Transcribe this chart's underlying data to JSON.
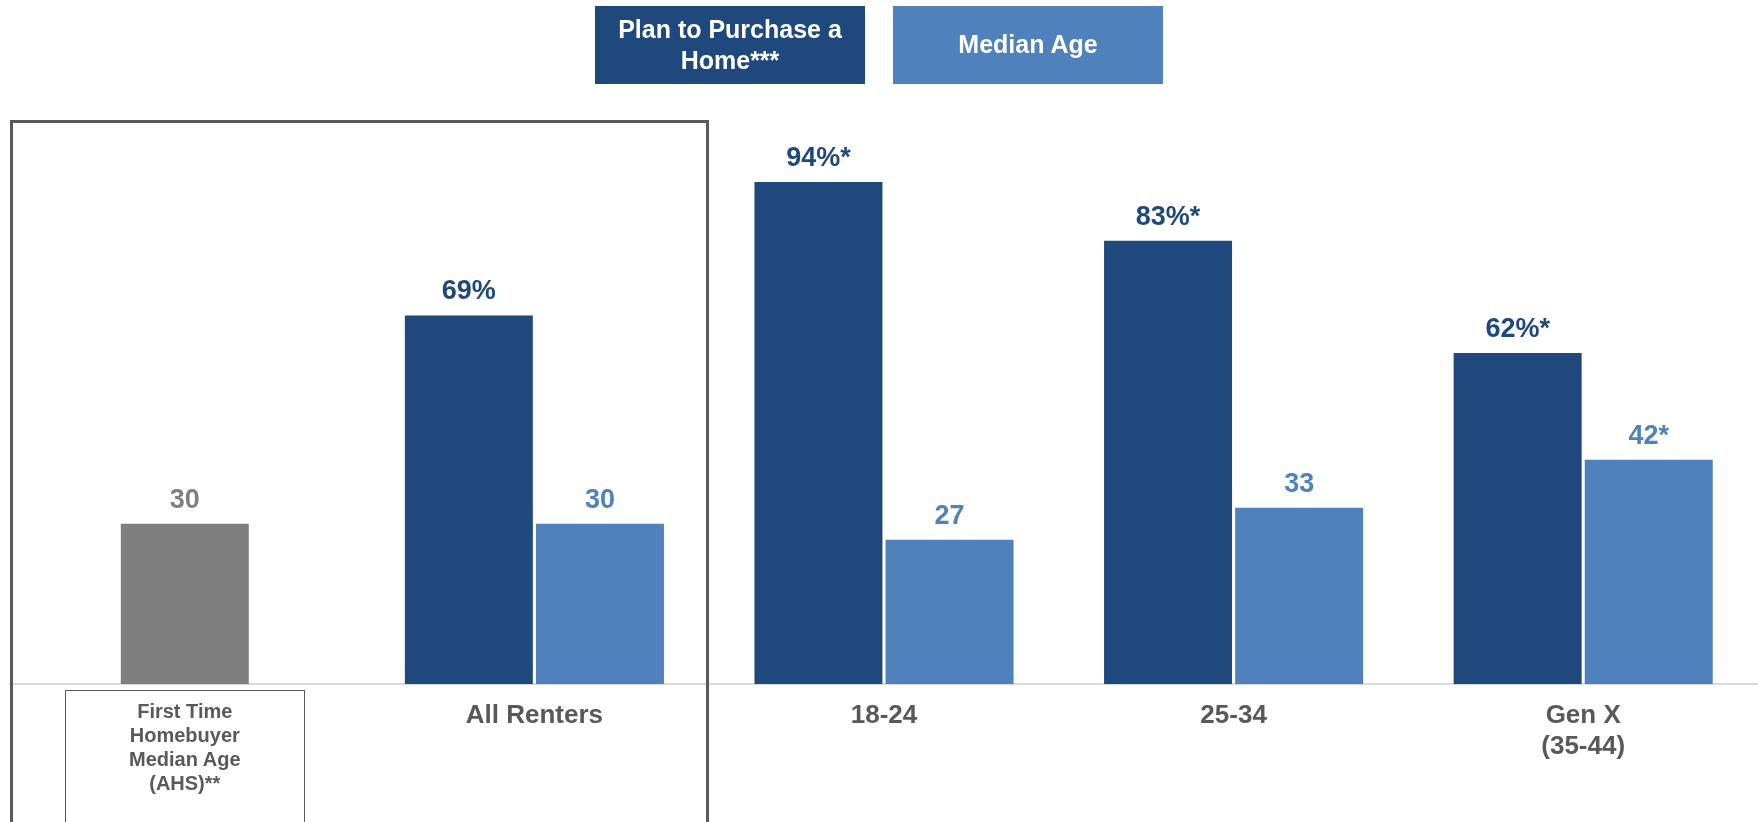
{
  "chart_data": {
    "type": "bar",
    "categories": [
      "First Time\nHomebuyer\nMedian Age\n(AHS)**",
      "All Renters",
      "18-24",
      "25-34",
      "Gen X\n(35-44)"
    ],
    "series": [
      {
        "color": "#7f7f7f",
        "values": [
          30,
          null,
          null,
          null,
          null
        ],
        "value_labels": [
          "30",
          null,
          null,
          null,
          null
        ]
      },
      {
        "name": "Plan to Purchase a Home***",
        "color": "#1f497d",
        "values": [
          null,
          69,
          94,
          83,
          62
        ],
        "value_labels": [
          null,
          "69%",
          "94%*",
          "83%*",
          "62%*"
        ]
      },
      {
        "name": "Median Age",
        "color": "#4f81bd",
        "values": [
          null,
          30,
          27,
          33,
          42
        ],
        "value_labels": [
          null,
          "30",
          "27",
          "33",
          "42*"
        ]
      }
    ],
    "legend": "top",
    "grid": false
  }
}
